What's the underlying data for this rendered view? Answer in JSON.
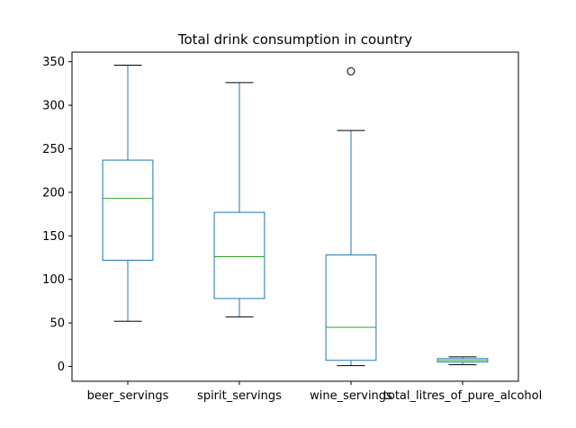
{
  "chart_data": {
    "type": "box",
    "title": "Total drink consumption in country",
    "xlabel": "",
    "ylabel": "",
    "ylim": [
      -17,
      361
    ],
    "yticks": [
      0,
      50,
      100,
      150,
      200,
      250,
      300,
      350
    ],
    "categories": [
      "beer_servings",
      "spirit_servings",
      "wine_servings",
      "total_litres_of_pure_alcohol"
    ],
    "boxes": [
      {
        "name": "beer_servings",
        "whisker_low": 52,
        "q1": 122,
        "median": 193,
        "q3": 237,
        "whisker_high": 346,
        "outliers": []
      },
      {
        "name": "spirit_servings",
        "whisker_low": 57,
        "q1": 78,
        "median": 126,
        "q3": 177,
        "whisker_high": 326,
        "outliers": []
      },
      {
        "name": "wine_servings",
        "whisker_low": 1,
        "q1": 7,
        "median": 45,
        "q3": 128,
        "whisker_high": 271,
        "outliers": [
          339
        ]
      },
      {
        "name": "total_litres_of_pure_alcohol",
        "whisker_low": 2,
        "q1": 5,
        "median": 7,
        "q3": 9,
        "whisker_high": 11,
        "outliers": []
      }
    ],
    "grid": false,
    "colors": {
      "box": "#1f77b4",
      "median": "#2ca02c",
      "whisker_cap": "#000000",
      "outlier": "#000000",
      "axes": "#000000"
    }
  }
}
